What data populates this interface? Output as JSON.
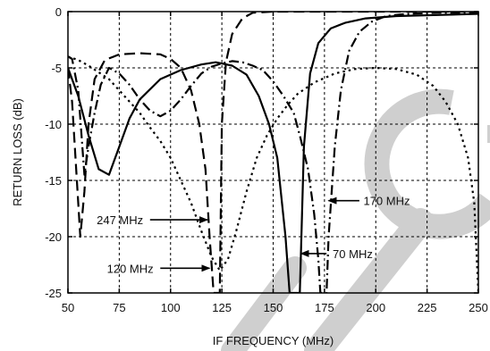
{
  "chart_data": {
    "type": "line",
    "xlabel": "IF FREQUENCY (MHz)",
    "ylabel": "RETURN LOSS (dB)",
    "xlim": [
      50,
      250
    ],
    "ylim": [
      -25,
      0
    ],
    "x_ticks": [
      50,
      75,
      100,
      125,
      150,
      175,
      200,
      225,
      250
    ],
    "y_ticks": [
      0,
      -5,
      -10,
      -15,
      -20,
      -25
    ],
    "grid": true,
    "watermark_color": "#cfcfcf",
    "series": [
      {
        "name": "70 MHz",
        "style": "solid",
        "points": [
          [
            50,
            -5
          ],
          [
            55,
            -7.5
          ],
          [
            60,
            -11
          ],
          [
            65,
            -14
          ],
          [
            70,
            -14.5
          ],
          [
            75,
            -12
          ],
          [
            80,
            -9.5
          ],
          [
            85,
            -7.8
          ],
          [
            95,
            -6
          ],
          [
            105,
            -5.2
          ],
          [
            115,
            -4.7
          ],
          [
            122,
            -4.5
          ],
          [
            130,
            -4.8
          ],
          [
            137,
            -5.6
          ],
          [
            143,
            -7.5
          ],
          [
            148,
            -10
          ],
          [
            152,
            -13
          ],
          [
            156,
            -20
          ],
          [
            158,
            -25
          ],
          [
            163,
            -25
          ],
          [
            165,
            -12
          ],
          [
            168,
            -5.5
          ],
          [
            172,
            -2.8
          ],
          [
            178,
            -1.5
          ],
          [
            185,
            -1
          ],
          [
            195,
            -0.6
          ],
          [
            210,
            -0.4
          ],
          [
            230,
            -0.3
          ],
          [
            250,
            -0.2
          ]
        ]
      },
      {
        "name": "120 MHz",
        "style": "long-dash",
        "points": [
          [
            50,
            -5
          ],
          [
            52,
            -8
          ],
          [
            54,
            -14
          ],
          [
            56,
            -20
          ],
          [
            58,
            -16
          ],
          [
            60,
            -10
          ],
          [
            63,
            -6
          ],
          [
            68,
            -4.3
          ],
          [
            75,
            -3.8
          ],
          [
            85,
            -3.7
          ],
          [
            95,
            -3.8
          ],
          [
            100,
            -4.2
          ],
          [
            105,
            -5
          ],
          [
            110,
            -7
          ],
          [
            114,
            -10
          ],
          [
            117,
            -14
          ],
          [
            119,
            -20
          ],
          [
            121,
            -25
          ],
          [
            124,
            -25
          ],
          [
            125,
            -10
          ],
          [
            127,
            -4.5
          ],
          [
            130,
            -2
          ],
          [
            135,
            -0.6
          ],
          [
            140,
            -0.1
          ],
          [
            150,
            0
          ],
          [
            250,
            0
          ]
        ]
      },
      {
        "name": "170 MHz",
        "style": "dash-dot",
        "points": [
          [
            50,
            -4
          ],
          [
            52,
            -4.2
          ],
          [
            55,
            -7
          ],
          [
            58,
            -14.5
          ],
          [
            60,
            -12
          ],
          [
            63,
            -9
          ],
          [
            66,
            -6.5
          ],
          [
            70,
            -5
          ],
          [
            75,
            -5.5
          ],
          [
            80,
            -6.5
          ],
          [
            85,
            -7.8
          ],
          [
            90,
            -8.8
          ],
          [
            95,
            -9.3
          ],
          [
            100,
            -8.8
          ],
          [
            105,
            -7.8
          ],
          [
            110,
            -6.6
          ],
          [
            115,
            -5.5
          ],
          [
            120,
            -4.9
          ],
          [
            125,
            -4.6
          ],
          [
            130,
            -4.4
          ],
          [
            135,
            -4.5
          ],
          [
            140,
            -4.8
          ],
          [
            145,
            -5.2
          ],
          [
            150,
            -6.2
          ],
          [
            155,
            -7.5
          ],
          [
            160,
            -9
          ],
          [
            163,
            -11
          ],
          [
            167,
            -14
          ],
          [
            170,
            -18
          ],
          [
            172,
            -22
          ],
          [
            173,
            -25
          ],
          [
            176,
            -25
          ],
          [
            177,
            -20
          ],
          [
            180,
            -12
          ],
          [
            183,
            -7
          ],
          [
            187,
            -3.5
          ],
          [
            192,
            -1.8
          ],
          [
            198,
            -0.9
          ],
          [
            205,
            -0.4
          ],
          [
            215,
            -0.2
          ],
          [
            230,
            -0.1
          ],
          [
            250,
            -0.1
          ]
        ]
      },
      {
        "name": "247 MHz",
        "style": "dotted",
        "points": [
          [
            50,
            -4
          ],
          [
            55,
            -4.3
          ],
          [
            60,
            -4.8
          ],
          [
            65,
            -5.4
          ],
          [
            70,
            -6
          ],
          [
            75,
            -7
          ],
          [
            80,
            -8
          ],
          [
            85,
            -9
          ],
          [
            90,
            -10.3
          ],
          [
            95,
            -11.5
          ],
          [
            100,
            -13
          ],
          [
            105,
            -15
          ],
          [
            110,
            -17
          ],
          [
            115,
            -19.5
          ],
          [
            120,
            -21.8
          ],
          [
            124,
            -23
          ],
          [
            128,
            -22
          ],
          [
            132,
            -19.5
          ],
          [
            137,
            -16
          ],
          [
            142,
            -13
          ],
          [
            147,
            -11
          ],
          [
            152,
            -9.5
          ],
          [
            157,
            -8.3
          ],
          [
            162,
            -7.3
          ],
          [
            170,
            -6.3
          ],
          [
            180,
            -5.5
          ],
          [
            190,
            -5.1
          ],
          [
            200,
            -5
          ],
          [
            210,
            -5.1
          ],
          [
            220,
            -5.6
          ],
          [
            228,
            -6.6
          ],
          [
            234,
            -8
          ],
          [
            240,
            -10
          ],
          [
            245,
            -13
          ],
          [
            248,
            -17
          ],
          [
            250,
            -25
          ]
        ]
      }
    ],
    "annotations": [
      {
        "text": "247 MHz",
        "label_x": 64,
        "label_y": -18.5,
        "arrow_from": [
          90,
          -18.5
        ],
        "arrow_to": [
          118,
          -18.5
        ]
      },
      {
        "text": "120 MHz",
        "label_x": 69,
        "label_y": -22.8,
        "arrow_from": [
          95,
          -22.8
        ],
        "arrow_to": [
          119,
          -22.8
        ]
      },
      {
        "text": "70 MHz",
        "label_x": 179,
        "label_y": -21.5,
        "arrow_from": [
          176,
          -21.5
        ],
        "arrow_to": [
          163.5,
          -21.5
        ]
      },
      {
        "text": "170 MHz",
        "label_x": 194,
        "label_y": -16.8,
        "arrow_from": [
          192,
          -16.8
        ],
        "arrow_to": [
          177,
          -16.8
        ]
      }
    ]
  }
}
